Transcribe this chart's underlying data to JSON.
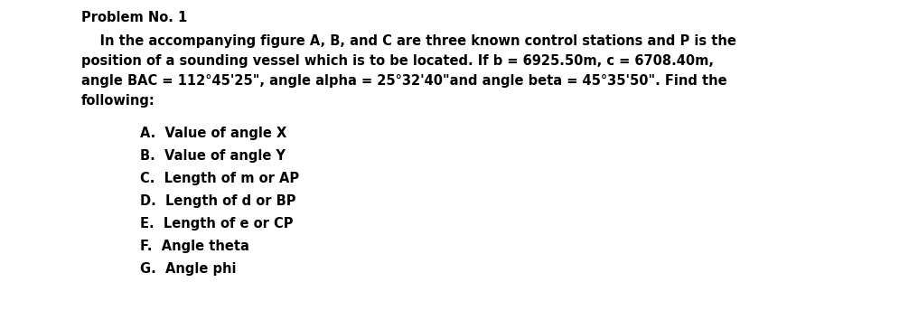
{
  "background_color": "#ffffff",
  "title_line": "Problem No. 1",
  "line1": "    In the accompanying figure A, B, and C are three known control stations and P is the",
  "line2": "position of a sounding vessel which is to be located. If b = 6925.50m, c = 6708.40m,",
  "line3": "angle BAC = 112°45'25\", angle alpha = 25°32'40\"and angle beta = 45°35'50\". Find the",
  "line4": "following:",
  "items": [
    "A.  Value of angle X",
    "B.  Value of angle Y",
    "C.  Length of m or AP",
    "D.  Length of d or BP",
    "E.  Length of e or CP",
    "F.  Angle theta",
    "G.  Angle phi"
  ],
  "font_size": 10.5,
  "font_weight": "bold",
  "font_family": "DejaVu Sans"
}
